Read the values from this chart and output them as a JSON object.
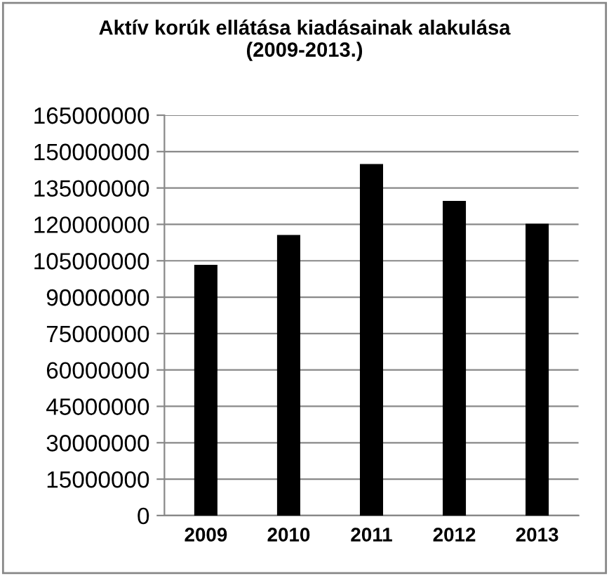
{
  "chart_data": {
    "type": "bar",
    "title": "Aktív korúk ellátása kiadásainak alakulása\n(2009-2013.)",
    "categories": [
      "2009",
      "2010",
      "2011",
      "2012",
      "2013"
    ],
    "values": [
      103300000,
      115600000,
      144900000,
      129700000,
      120300000
    ],
    "color": "#000000",
    "ylim": [
      0,
      165000000
    ],
    "yticks": [
      0,
      15000000,
      30000000,
      45000000,
      60000000,
      75000000,
      90000000,
      105000000,
      120000000,
      135000000,
      150000000,
      165000000
    ],
    "grid": "y",
    "legend": false
  }
}
